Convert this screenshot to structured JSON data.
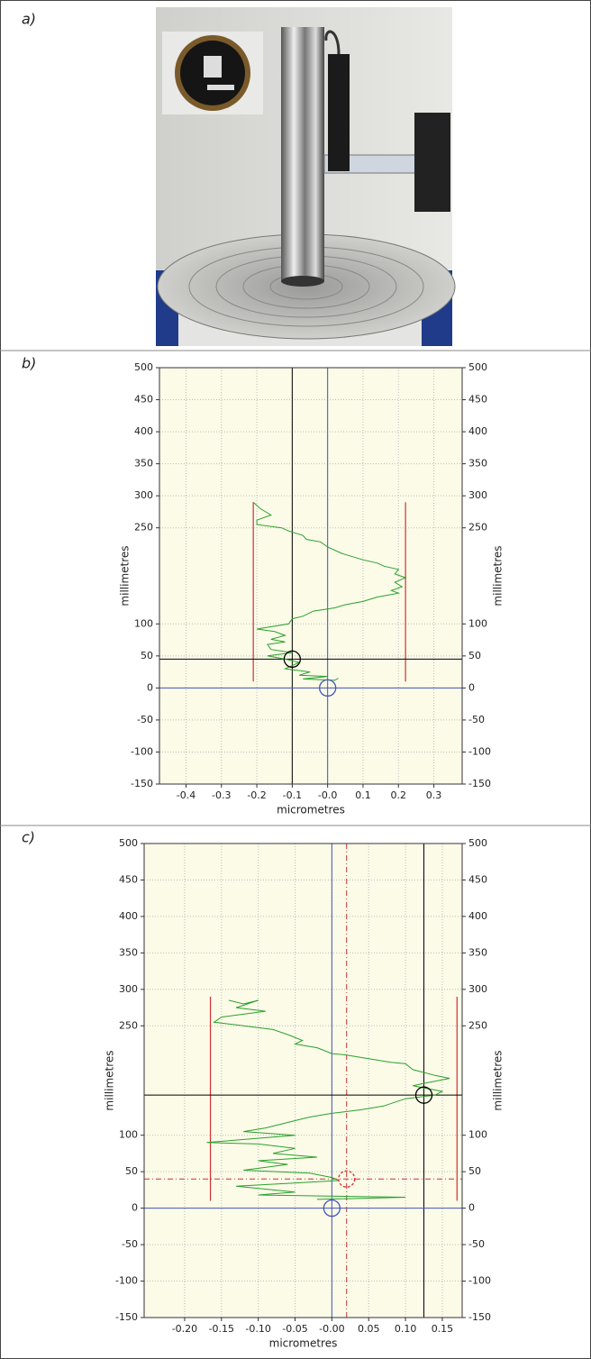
{
  "panel_labels": [
    "a)",
    "b)",
    "c)"
  ],
  "chart_data": [
    {
      "type": "line",
      "xlabel": "micrometres",
      "ylabel": "millimetres",
      "xlim": [
        -0.475,
        0.38
      ],
      "ylim": [
        -150,
        500
      ],
      "xticks": [
        -0.4,
        -0.3,
        -0.2,
        -0.1,
        {
          "value": 0,
          "label": "-0.0"
        },
        0.1,
        0.2,
        0.3
      ],
      "yticks": [
        500,
        450,
        400,
        350,
        300,
        250,
        100,
        50,
        0,
        -50,
        -100,
        -150
      ],
      "grid": true,
      "series": [
        {
          "color": "#2ca02c",
          "x": [
            -0.21,
            -0.19,
            -0.16,
            -0.2,
            -0.2,
            -0.13,
            -0.11,
            -0.07,
            -0.06,
            -0.02,
            0.0,
            0.04,
            0.07,
            0.1,
            0.14,
            0.16,
            0.2,
            0.19,
            0.22,
            0.19,
            0.21,
            0.18,
            0.2,
            0.14,
            0.1,
            0.05,
            0.02,
            -0.04,
            -0.07,
            -0.1,
            -0.11,
            -0.2,
            -0.15,
            -0.12,
            -0.16,
            -0.12,
            -0.17,
            -0.16,
            -0.1,
            -0.17,
            -0.12,
            -0.08,
            -0.12,
            -0.05,
            -0.08,
            0.0,
            -0.07,
            0.02,
            0.03
          ],
          "values": [
            290,
            280,
            270,
            262,
            255,
            250,
            245,
            238,
            232,
            228,
            220,
            210,
            205,
            200,
            195,
            190,
            185,
            178,
            172,
            165,
            158,
            152,
            148,
            142,
            135,
            130,
            125,
            120,
            112,
            108,
            100,
            92,
            88,
            82,
            76,
            72,
            68,
            60,
            55,
            50,
            45,
            40,
            30,
            25,
            20,
            18,
            14,
            12,
            15
          ]
        }
      ],
      "vlines": [
        {
          "x": 0,
          "color": "#4455bb",
          "style": "solid"
        },
        {
          "x": -0.1,
          "color": "#000000",
          "style": "solid"
        }
      ],
      "hlines": [
        {
          "y": 0,
          "color": "#4455bb",
          "style": "solid"
        },
        {
          "y": 45,
          "color": "#000000",
          "style": "solid"
        }
      ],
      "limits": [
        {
          "x": -0.21,
          "y": [
            10,
            290
          ],
          "color": "#d03030"
        },
        {
          "x": 0.22,
          "y": [
            10,
            290
          ],
          "color": "#d03030"
        }
      ],
      "circles": [
        {
          "x": -0.1,
          "y": 45,
          "color": "#000000",
          "style": "solid"
        },
        {
          "x": 0,
          "y": 0,
          "color": "#4455bb",
          "style": "solid"
        }
      ]
    },
    {
      "type": "line",
      "xlabel": "micrometres",
      "ylabel": "millimetres",
      "xlim": [
        -0.255,
        0.177
      ],
      "ylim": [
        -150,
        500
      ],
      "xticks": [
        {
          "value": -0.2,
          "label": "-0.20"
        },
        {
          "value": -0.15,
          "label": "-0.15"
        },
        {
          "value": -0.1,
          "label": "-0.10"
        },
        {
          "value": -0.05,
          "label": "-0.05"
        },
        {
          "value": 0,
          "label": "-0.00"
        },
        0.05,
        {
          "value": 0.1,
          "label": "0.10"
        },
        0.15
      ],
      "yticks": [
        500,
        450,
        400,
        350,
        300,
        250,
        100,
        50,
        0,
        -50,
        -100,
        -150
      ],
      "grid": true,
      "series": [
        {
          "color": "#2ca02c",
          "x": [
            -0.14,
            -0.12,
            -0.1,
            -0.13,
            -0.09,
            -0.15,
            -0.16,
            -0.12,
            -0.08,
            -0.06,
            -0.04,
            -0.05,
            -0.02,
            0.0,
            0.02,
            0.05,
            0.08,
            0.1,
            0.11,
            0.14,
            0.16,
            0.13,
            0.11,
            0.15,
            0.14,
            0.1,
            0.07,
            0.04,
            0.0,
            -0.03,
            -0.05,
            -0.09,
            -0.12,
            -0.05,
            -0.17,
            -0.1,
            -0.05,
            -0.08,
            -0.02,
            -0.1,
            -0.06,
            -0.12,
            -0.03,
            0.0,
            0.01,
            -0.04,
            -0.13,
            -0.05,
            -0.1,
            0.1,
            -0.02
          ],
          "values": [
            285,
            280,
            285,
            275,
            270,
            262,
            255,
            250,
            245,
            238,
            230,
            225,
            220,
            212,
            210,
            205,
            200,
            198,
            190,
            182,
            178,
            172,
            168,
            160,
            155,
            150,
            140,
            135,
            130,
            125,
            120,
            110,
            105,
            100,
            90,
            88,
            82,
            75,
            70,
            65,
            60,
            52,
            48,
            42,
            38,
            35,
            30,
            22,
            18,
            15,
            12
          ]
        }
      ],
      "vlines": [
        {
          "x": 0,
          "color": "#4455bb",
          "style": "solid"
        },
        {
          "x": 0.02,
          "color": "#d03030",
          "style": "dashdot"
        },
        {
          "x": 0.125,
          "color": "#000000",
          "style": "solid"
        }
      ],
      "hlines": [
        {
          "y": 0,
          "color": "#4455bb",
          "style": "solid"
        },
        {
          "y": 40,
          "color": "#d03030",
          "style": "dashdot"
        },
        {
          "y": 155,
          "color": "#000000",
          "style": "solid"
        }
      ],
      "limits": [
        {
          "x": -0.165,
          "y": [
            10,
            290
          ],
          "color": "#d03030"
        },
        {
          "x": 0.17,
          "y": [
            10,
            290
          ],
          "color": "#d03030"
        }
      ],
      "circles": [
        {
          "x": 0.125,
          "y": 155,
          "color": "#000000",
          "style": "solid"
        },
        {
          "x": 0.02,
          "y": 40,
          "color": "#d03030",
          "style": "dashed"
        },
        {
          "x": 0,
          "y": 0,
          "color": "#4455bb",
          "style": "solid"
        }
      ]
    }
  ]
}
